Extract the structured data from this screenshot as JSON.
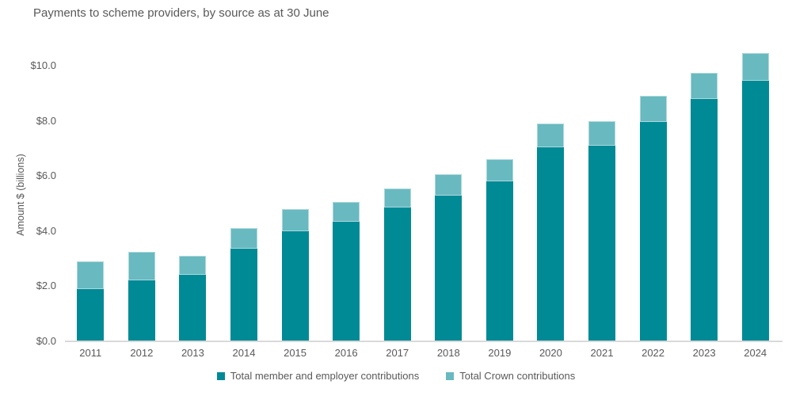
{
  "title": "Payments to scheme providers, by source as at 30 June",
  "y_axis": {
    "label": "Amount $ (billions)",
    "ticks": [
      {
        "value": 0,
        "label": "$0.0"
      },
      {
        "value": 2,
        "label": "$2.0"
      },
      {
        "value": 4,
        "label": "$4.0"
      },
      {
        "value": 6,
        "label": "$6.0"
      },
      {
        "value": 8,
        "label": "$8.0"
      },
      {
        "value": 10,
        "label": "$10.0"
      }
    ]
  },
  "legend": [
    {
      "label": "Total member and employer contributions",
      "color": "#008A96"
    },
    {
      "label": "Total Crown contributions",
      "color": "#69B9C0"
    }
  ],
  "colors": {
    "member_series": "#008A96",
    "crown_series": "#69B9C0",
    "text": "#595959",
    "axis_line": "#d9d9d9"
  },
  "chart_data": {
    "type": "bar",
    "stacked": true,
    "title": "Payments to scheme providers, by source as at 30 June",
    "categories": [
      "2011",
      "2012",
      "2013",
      "2014",
      "2015",
      "2016",
      "2017",
      "2018",
      "2019",
      "2020",
      "2021",
      "2022",
      "2023",
      "2024"
    ],
    "series": [
      {
        "name": "Total member and employer contributions",
        "color": "#008A96",
        "values": [
          1.9,
          2.2,
          2.4,
          3.35,
          4.0,
          4.35,
          4.85,
          5.3,
          5.8,
          7.05,
          7.1,
          7.95,
          8.8,
          9.45
        ]
      },
      {
        "name": "Total Crown contributions",
        "color": "#69B9C0",
        "values": [
          1.0,
          1.05,
          0.7,
          0.75,
          0.8,
          0.7,
          0.7,
          0.75,
          0.8,
          0.85,
          0.9,
          0.95,
          0.95,
          1.0
        ]
      }
    ],
    "stacked_totals": [
      2.9,
      3.25,
      3.1,
      4.1,
      4.8,
      5.05,
      5.55,
      6.05,
      6.6,
      7.9,
      8.0,
      8.9,
      9.75,
      10.45
    ],
    "xlabel": "",
    "ylabel": "Amount $ (billions)",
    "ylim": [
      0,
      10.5
    ],
    "y_tick_step": 2,
    "grid": false,
    "legend_position": "bottom"
  }
}
